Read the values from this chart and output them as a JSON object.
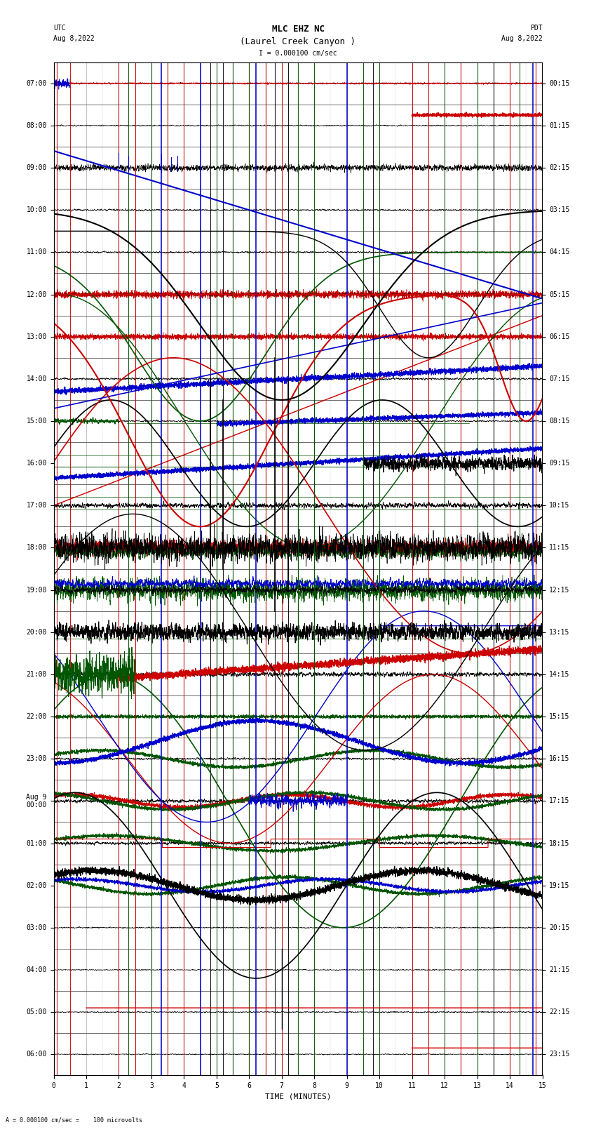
{
  "title_line1": "MLC EHZ NC",
  "title_line2": "(Laurel Creek Canyon )",
  "scale_text": "I = 0.000100 cm/sec",
  "utc_label": "UTC",
  "utc_date": "Aug 8,2022",
  "pdt_label": "PDT",
  "pdt_date": "Aug 8,2022",
  "xlabel": "TIME (MINUTES)",
  "footer_text": "A = 0.000100 cm/sec =    100 microvolts",
  "xmin": 0,
  "xmax": 15,
  "n_rows": 24,
  "bg_color": "#ffffff",
  "grid_color": "#999999",
  "colors": {
    "black": "#000000",
    "red": "#cc0000",
    "green": "#005500",
    "blue": "#0000cc"
  },
  "title_fontsize": 9,
  "label_fontsize": 8,
  "tick_fontsize": 7
}
